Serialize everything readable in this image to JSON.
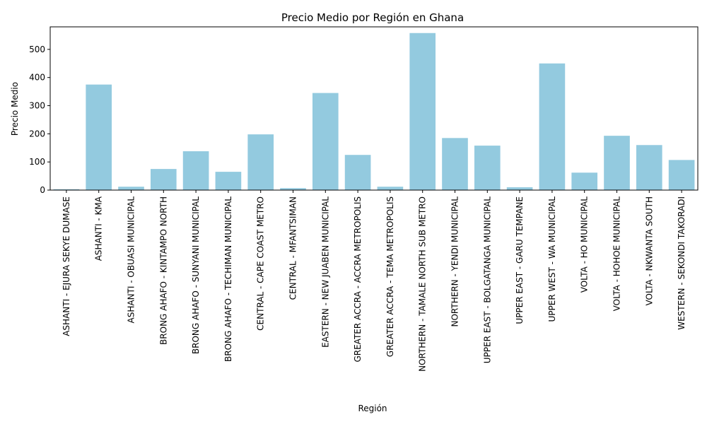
{
  "chart_data": {
    "type": "bar",
    "title": "Precio Medio por Región en Ghana",
    "xlabel": "Región",
    "ylabel": "Precio Medio",
    "ylim": [
      0,
      580
    ],
    "yticks": [
      0,
      100,
      200,
      300,
      400,
      500
    ],
    "grid": false,
    "bar_color": "#93cadf",
    "categories": [
      "ASHANTI - EJURA SEKYE DUMASE",
      "ASHANTI - KMA",
      "ASHANTI - OBUASI MUNICIPAL",
      "BRONG AHAFO - KINTAMPO NORTH",
      "BRONG AHAFO - SUNYANI MUNICIPAL",
      "BRONG AHAFO - TECHIMAN MUNICIPAL",
      "CENTRAL - CAPE COAST METRO",
      "CENTRAL - MFANTSIMAN",
      "EASTERN - NEW JUABEN MUNICIPAL",
      "GREATER ACCRA - ACCRA METROPOLIS",
      "GREATER ACCRA - TEMA METROPOLIS",
      "NORTHERN - TAMALE NORTH SUB METRO",
      "NORTHERN - YENDI MUNICIPAL",
      "UPPER EAST - BOLGATANGA MUNICIPAL",
      "UPPER EAST - GARU TEMPANE",
      "UPPER WEST - WA MUNICIPAL",
      "VOLTA - HO MUNICIPAL",
      "VOLTA - HOHOE MUNICIPAL",
      "VOLTA - NKWANTA SOUTH",
      "WESTERN - SEKONDI TAKORADI"
    ],
    "values": [
      3,
      375,
      12,
      75,
      138,
      65,
      198,
      7,
      345,
      125,
      12,
      558,
      185,
      158,
      10,
      450,
      62,
      193,
      160,
      107
    ]
  }
}
